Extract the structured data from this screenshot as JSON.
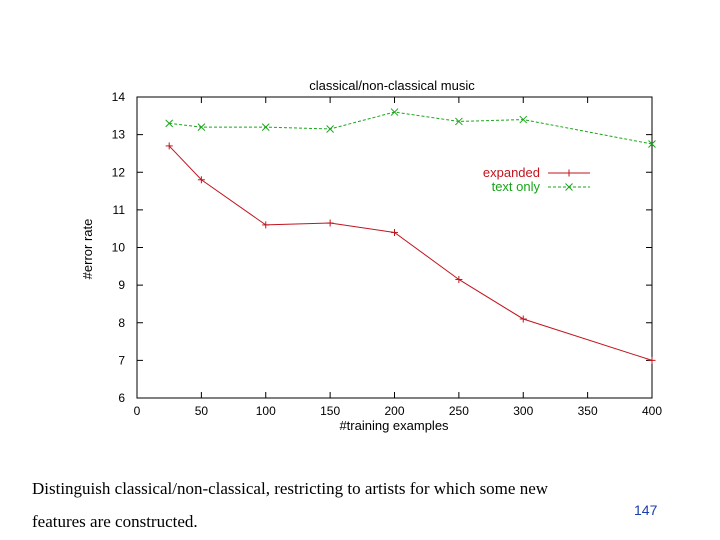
{
  "chart_data": {
    "type": "line",
    "title": "classical/non-classical music",
    "xlabel": "#training examples",
    "ylabel": "#error rate",
    "xlim": [
      0,
      400
    ],
    "ylim": [
      6,
      14
    ],
    "xticks": [
      0,
      50,
      100,
      150,
      200,
      250,
      300,
      350,
      400
    ],
    "yticks": [
      6,
      7,
      8,
      9,
      10,
      11,
      12,
      13,
      14
    ],
    "legend_position": "right",
    "series": [
      {
        "name": "expanded",
        "color": "#c0141e",
        "line_style": "solid",
        "marker": "+",
        "x": [
          25,
          50,
          100,
          150,
          200,
          250,
          300,
          400
        ],
        "y": [
          12.7,
          11.8,
          10.6,
          10.65,
          10.4,
          9.15,
          8.1,
          7.0
        ]
      },
      {
        "name": "text only",
        "color": "#1aa51a",
        "line_style": "dashed",
        "marker": "x",
        "x": [
          25,
          50,
          100,
          150,
          200,
          250,
          300,
          400
        ],
        "y": [
          13.3,
          13.2,
          13.2,
          13.15,
          13.6,
          13.35,
          13.4,
          12.75
        ]
      }
    ]
  },
  "caption": {
    "line1": "Distinguish classical/non-classical, restricting to artists for which some new",
    "line2": "features are constructed."
  },
  "page_number": "147"
}
